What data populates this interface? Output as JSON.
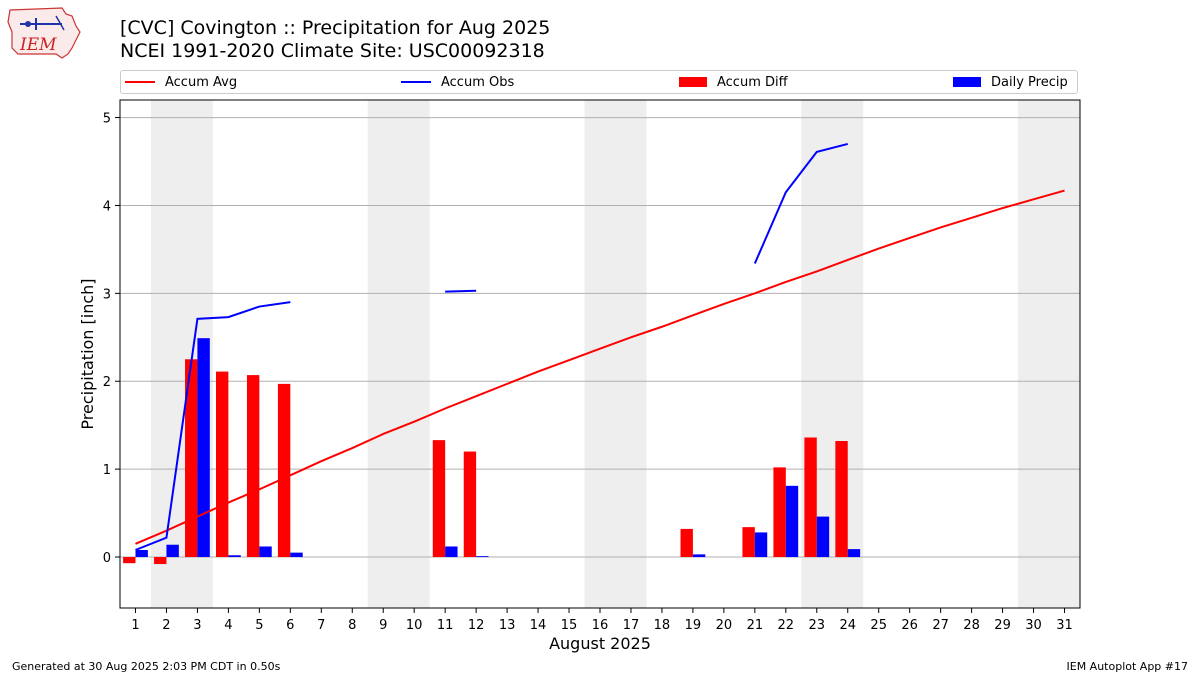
{
  "logo": {
    "text": "IEM",
    "icon": "iowa-state-outline-logo"
  },
  "title": {
    "line1": "[CVC] Covington :: Precipitation for Aug 2025",
    "line2": "NCEI 1991-2020 Climate Site: USC00092318"
  },
  "footer": {
    "left": "Generated at 30 Aug 2025 2:03 PM CDT in 0.50s",
    "right": "IEM Autoplot App #17"
  },
  "colors": {
    "avg": "#ff0000",
    "obs": "#0000ff",
    "diff": "#ff0000",
    "daily": "#0000ff",
    "weekend": "#eeeeee",
    "grid": "#b0b0b0"
  },
  "chart_data": {
    "type": "bar",
    "xlabel": "August 2025",
    "ylabel": "Precipitation [inch]",
    "ylim": [
      -0.58,
      5.2
    ],
    "yticks": [
      0,
      1,
      2,
      3,
      4,
      5
    ],
    "grid": "horizontal",
    "legend_position": "top",
    "x": [
      1,
      2,
      3,
      4,
      5,
      6,
      7,
      8,
      9,
      10,
      11,
      12,
      13,
      14,
      15,
      16,
      17,
      18,
      19,
      20,
      21,
      22,
      23,
      24,
      25,
      26,
      27,
      28,
      29,
      30,
      31
    ],
    "weekend_days": [
      2,
      3,
      9,
      10,
      16,
      17,
      23,
      24,
      30,
      31
    ],
    "series": [
      {
        "name": "Accum Avg",
        "kind": "line",
        "values": [
          0.15,
          0.3,
          0.46,
          0.62,
          0.77,
          0.93,
          1.09,
          1.24,
          1.4,
          1.54,
          1.69,
          1.83,
          1.97,
          2.11,
          2.24,
          2.37,
          2.5,
          2.62,
          2.75,
          2.88,
          3.0,
          3.13,
          3.25,
          3.38,
          3.51,
          3.63,
          3.75,
          3.86,
          3.97,
          4.07,
          4.17
        ]
      },
      {
        "name": "Accum Obs",
        "kind": "line",
        "values": [
          0.08,
          0.22,
          2.71,
          2.73,
          2.85,
          2.9,
          null,
          null,
          null,
          null,
          3.02,
          3.03,
          null,
          null,
          null,
          null,
          null,
          null,
          null,
          null,
          3.34,
          4.15,
          4.61,
          4.7,
          null,
          null,
          null,
          null,
          null,
          null,
          null
        ]
      },
      {
        "name": "Accum Diff",
        "kind": "bar",
        "values": [
          -0.07,
          -0.08,
          2.25,
          2.11,
          2.07,
          1.97,
          null,
          null,
          null,
          null,
          1.33,
          1.2,
          null,
          null,
          null,
          null,
          null,
          null,
          0.32,
          null,
          0.34,
          1.02,
          1.36,
          1.32,
          null,
          null,
          null,
          null,
          null,
          null,
          null
        ]
      },
      {
        "name": "Daily Precip",
        "kind": "bar",
        "values": [
          0.08,
          0.14,
          2.49,
          0.02,
          0.12,
          0.05,
          null,
          null,
          null,
          null,
          0.12,
          0.01,
          null,
          null,
          null,
          null,
          null,
          null,
          0.03,
          null,
          0.28,
          0.81,
          0.46,
          0.09,
          null,
          null,
          null,
          null,
          null,
          null,
          null
        ]
      }
    ]
  }
}
